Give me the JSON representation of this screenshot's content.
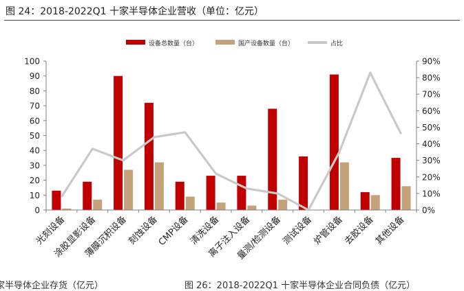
{
  "figure": {
    "title": "图 24：2018-2022Q1 十家半导体企业营收（单位：亿元）",
    "bottom_left_text": "家半导体企业存货（亿元）",
    "bottom_right_text": "图 26：2018-2022Q1 十家半导体企业合同负债（亿元）"
  },
  "chart_data": {
    "type": "bar",
    "categories": [
      "光刻设备",
      "涂胶显影设备",
      "薄膜沉积设备",
      "刻蚀设备",
      "CMP设备",
      "清洗设备",
      "离子注入设备",
      "量测/检测设备",
      "测试设备",
      "炉管设备",
      "去胶设备",
      "其他设备"
    ],
    "series": [
      {
        "name": "设备总数量（台）",
        "type": "bar",
        "axis": "left",
        "color": "#c00000",
        "values": [
          13,
          19,
          90,
          72,
          19,
          23,
          23,
          68,
          36,
          91,
          12,
          35
        ]
      },
      {
        "name": "国产设备数量（台）",
        "type": "bar",
        "axis": "left",
        "color": "#c4a27a",
        "values": [
          1,
          7,
          27,
          32,
          9,
          5,
          3,
          7,
          0,
          32,
          10,
          16
        ]
      },
      {
        "name": "占比",
        "type": "line",
        "axis": "right",
        "color": "#c9c9c9",
        "values": [
          0.08,
          0.37,
          0.3,
          0.44,
          0.47,
          0.22,
          0.13,
          0.1,
          0.0,
          0.35,
          0.83,
          0.46
        ]
      }
    ],
    "y_left": {
      "min": 0,
      "max": 100,
      "ticks": [
        0,
        10,
        20,
        30,
        40,
        50,
        60,
        70,
        80,
        90,
        100
      ],
      "tick_labels": [
        "0",
        "10",
        "20",
        "30",
        "40",
        "50",
        "60",
        "70",
        "80",
        "90",
        "100"
      ]
    },
    "y_right": {
      "min": 0,
      "max": 0.9,
      "ticks": [
        0,
        0.1,
        0.2,
        0.3,
        0.4,
        0.5,
        0.6,
        0.7,
        0.8,
        0.9
      ],
      "tick_labels": [
        "0%",
        "10%",
        "20%",
        "30%",
        "40%",
        "50%",
        "60%",
        "70%",
        "80%",
        "90%"
      ]
    },
    "legend_position": "top-center",
    "grid": false
  }
}
